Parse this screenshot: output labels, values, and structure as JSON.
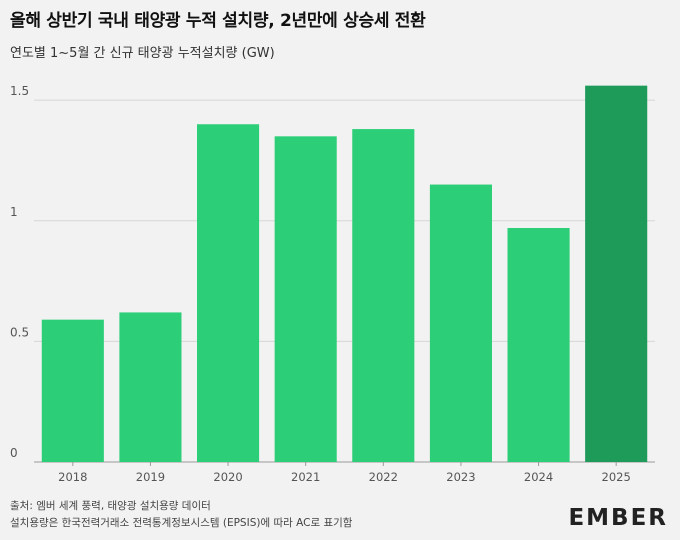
{
  "header": {
    "title": "올해 상반기 국내 태양광 누적 설치량, 2년만에 상승세 전환",
    "subtitle": "연도별 1~5월 간 신규 태양광 누적설치량 (GW)"
  },
  "chart_data": {
    "type": "bar",
    "title": "올해 상반기 국내 태양광 누적 설치량, 2년만에 상승세 전환",
    "ylabel": "연도별 1~5월 간 신규 태양광 누적설치량 (GW)",
    "xlabel": "",
    "categories": [
      "2018",
      "2019",
      "2020",
      "2021",
      "2022",
      "2023",
      "2024",
      "2025"
    ],
    "values": [
      0.59,
      0.62,
      1.4,
      1.35,
      1.38,
      1.15,
      0.97,
      1.56
    ],
    "ylim": [
      0,
      1.6
    ],
    "yticks": [
      0,
      0.5,
      1,
      1.5
    ],
    "ytick_labels": [
      "0",
      "0.5",
      "1",
      "1.5"
    ],
    "highlight_index": 7,
    "colors": {
      "bar": "#2ccf78",
      "highlight": "#1e9a59",
      "grid": "#d6d6d6"
    },
    "grid": true
  },
  "footer": {
    "source_line": "출처: 엠버 세계 풍력, 태양광 설치용량 데이터",
    "note_line": "설치용량은 한국전력거래소 전력통계정보시스템 (EPSIS)에 따라 AC로 표기함"
  },
  "brand": {
    "logo": "EMBER"
  }
}
